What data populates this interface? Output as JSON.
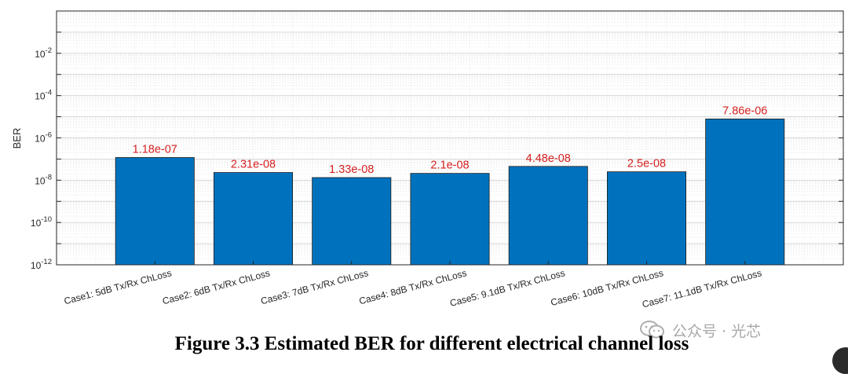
{
  "chart_data": {
    "type": "bar",
    "y_scale": "log",
    "categories": [
      "Case1: 5dB Tx/Rx ChLoss",
      "Case2: 6dB Tx/Rx ChLoss",
      "Case3: 7dB Tx/Rx ChLoss",
      "Case4: 8dB Tx/Rx ChLoss",
      "Case5: 9.1dB Tx/Rx ChLoss",
      "Case6: 10dB Tx/Rx ChLoss",
      "Case7: 11.1dB Tx/Rx ChLoss"
    ],
    "values": [
      1.18e-07,
      2.31e-08,
      1.33e-08,
      2.1e-08,
      4.48e-08,
      2.5e-08,
      7.86e-06
    ],
    "data_labels": [
      "1.18e-07",
      "2.31e-08",
      "1.33e-08",
      "2.1e-08",
      "4.48e-08",
      "2.5e-08",
      "7.86e-06"
    ],
    "ylabel": "BER",
    "xlabel": "",
    "ylim": [
      1e-12,
      1
    ],
    "y_ticks": [
      {
        "base": "10",
        "exp": "-12"
      },
      {
        "base": "10",
        "exp": "-10"
      },
      {
        "base": "10",
        "exp": "-8"
      },
      {
        "base": "10",
        "exp": "-6"
      },
      {
        "base": "10",
        "exp": "-4"
      },
      {
        "base": "10",
        "exp": "-2"
      }
    ],
    "grid": true,
    "minor_grid": true,
    "bar_color": "#0072BD",
    "data_label_color": "#d62020"
  },
  "caption": "Figure 3.3 Estimated BER for different electrical channel loss",
  "watermark": {
    "text": "公众号 · 光芯",
    "icon": "wechat-icon"
  }
}
